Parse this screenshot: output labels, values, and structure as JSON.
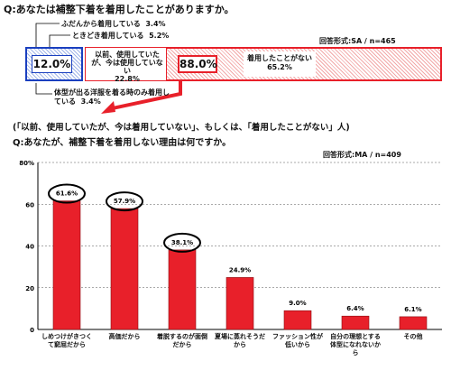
{
  "q1": {
    "title": "Q:あなたは補整下着を着用したことがありますか。",
    "format": "回答形式:SA / n=465",
    "total_wearing_pct": "12.0%",
    "total_not_pct": "88.0%",
    "segments": [
      {
        "label": "ふだんから着用している",
        "pct": "3.4%"
      },
      {
        "label": "ときどき着用している",
        "pct": "5.2%"
      },
      {
        "label": "体型が出る洋服を着る時のみ着用している",
        "pct": "3.4%"
      },
      {
        "label": "以前、使用していたが、今は使用していない",
        "pct": "22.8%"
      },
      {
        "label": "着用したことがない",
        "pct": "65.2%"
      }
    ]
  },
  "q2": {
    "subtitle": "(「以前、使用していたが、今は着用していない」、もしくは、「着用したことがない」人)",
    "title": "Q:あなたが、補整下着を着用しない理由は何ですか。",
    "format": "回答形式:MA / n=409"
  },
  "colors": {
    "bar": "#e8202a",
    "blue": "#1a3fbf",
    "red": "#e8202a"
  },
  "chart_data": {
    "type": "bar",
    "categories": [
      "しめつけがきつくて窮屈だから",
      "高価だから",
      "着脱するのが面倒だから",
      "夏場に蒸れそうだから",
      "ファッション性が低いから",
      "自分の理想とする体型になれないから",
      "その他"
    ],
    "values": [
      61.6,
      57.9,
      38.1,
      24.9,
      9.0,
      6.4,
      6.1
    ],
    "value_labels": [
      "61.6%",
      "57.9%",
      "38.1%",
      "24.9%",
      "9.0%",
      "6.4%",
      "6.1%"
    ],
    "ylim": [
      0,
      80
    ],
    "yticks": [
      0,
      20,
      40,
      60,
      80
    ],
    "ytick_labels": [
      "0",
      "20",
      "40",
      "60",
      "80%"
    ],
    "circled": [
      0,
      1,
      2
    ],
    "xlabel": "",
    "ylabel": "",
    "title": ""
  }
}
